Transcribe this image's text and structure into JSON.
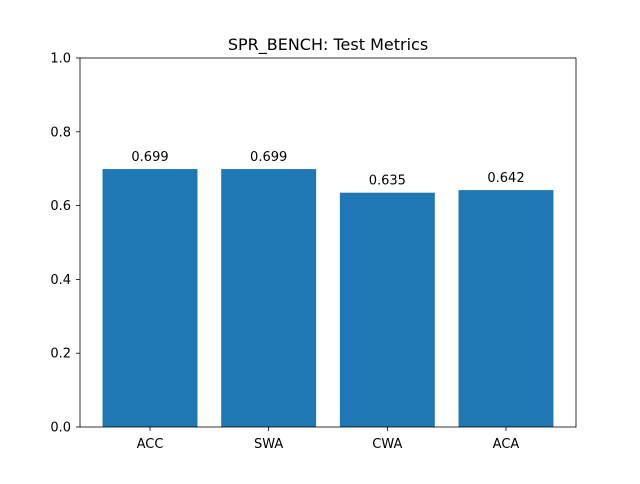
{
  "chart_data": {
    "type": "bar",
    "title": "SPR_BENCH: Test Metrics",
    "xlabel": "",
    "ylabel": "",
    "categories": [
      "ACC",
      "SWA",
      "CWA",
      "ACA"
    ],
    "values": [
      0.699,
      0.699,
      0.635,
      0.642
    ],
    "value_labels": [
      "0.699",
      "0.699",
      "0.635",
      "0.642"
    ],
    "ylim": [
      0,
      1.0
    ],
    "yticks": [
      0.0,
      0.2,
      0.4,
      0.6,
      0.8,
      1.0
    ],
    "ytick_labels": [
      "0.0",
      "0.2",
      "0.4",
      "0.6",
      "0.8",
      "1.0"
    ],
    "bar_color": "#1f77b4",
    "grid": false,
    "legend": "none"
  }
}
